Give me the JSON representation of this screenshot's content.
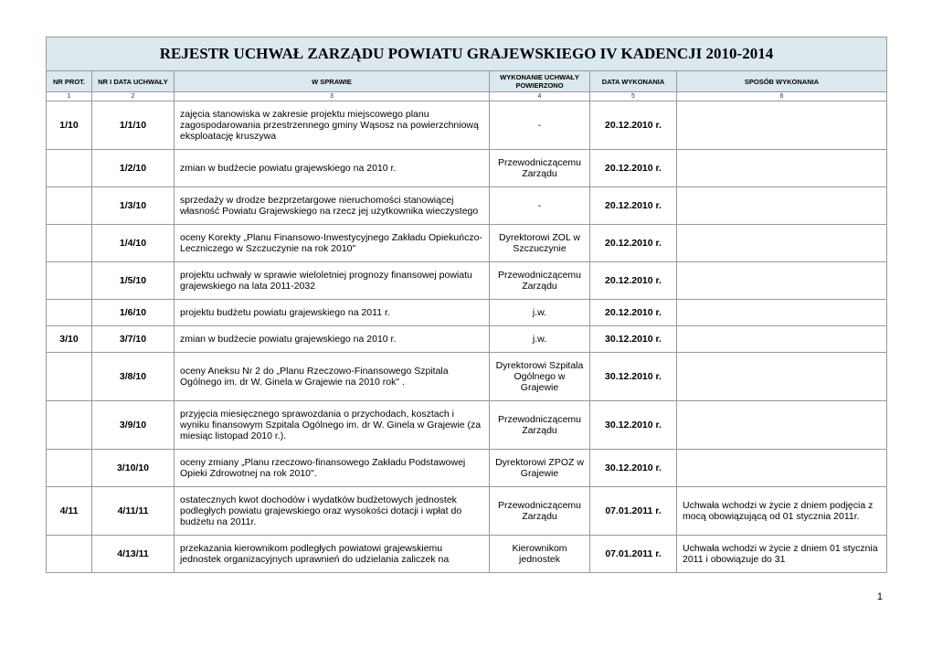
{
  "title": "REJESTR UCHWAŁ ZARZĄDU POWIATU GRAJEWSKIEGO IV KADENCJI 2010-2014",
  "headers": {
    "nr_prot": "NR PROT.",
    "nr_data": "NR I DATA UCHWAŁY",
    "w_sprawie": "W SPRAWIE",
    "wykonanie": "WYKONANIE UCHWAŁY POWIERZONO",
    "data_wyk": "DATA WYKONANIA",
    "sposob": "SPOSÓB WYKONANIA"
  },
  "colnums": [
    "1",
    "2",
    "3",
    "4",
    "5",
    "6"
  ],
  "rows": [
    {
      "nr": "1/10",
      "id": "1/1/10",
      "sprawa": "zajęcia stanowiska w zakresie projektu miejscowego planu zagospodarowania przestrzennego gminy Wąsosz na powierzchniową  eksploatację kruszywa",
      "wyk": "-",
      "data": "20.12.2010 r.",
      "sposob": ""
    },
    {
      "nr": "",
      "id": "1/2/10",
      "sprawa": "zmian w budżecie powiatu grajewskiego na 2010 r.",
      "wyk": "Przewodniczącemu Zarządu",
      "data": "20.12.2010 r.",
      "sposob": ""
    },
    {
      "nr": "",
      "id": "1/3/10",
      "sprawa": "sprzedaży w drodze bezprzetargowe nieruchomości stanowiącej własność Powiatu Grajewskiego na rzecz jej użytkownika wieczystego",
      "wyk": "-",
      "data": "20.12.2010 r.",
      "sposob": ""
    },
    {
      "nr": "",
      "id": "1/4/10",
      "sprawa": "oceny Korekty „Planu Finansowo-Inwestycyjnego Zakładu Opiekuńczo-Leczniczego w Szczuczynie na rok 2010\"",
      "wyk": "Dyrektorowi ZOL w Szczuczynie",
      "data": "20.12.2010 r.",
      "sposob": ""
    },
    {
      "nr": "",
      "id": "1/5/10",
      "sprawa": "projektu uchwały w sprawie wieloletniej prognozy finansowej powiatu grajewskiego na lata 2011-2032",
      "wyk": "Przewodniczącemu Zarządu",
      "data": "20.12.2010 r.",
      "sposob": ""
    },
    {
      "nr": "",
      "id": "1/6/10",
      "sprawa": "projektu budżetu powiatu grajewskiego na 2011 r.",
      "wyk": "j.w.",
      "data": "20.12.2010 r.",
      "sposob": ""
    },
    {
      "nr": "3/10",
      "id": "3/7/10",
      "sprawa": "zmian w budżecie powiatu grajewskiego na 2010 r.",
      "wyk": "j.w.",
      "data": "30.12.2010 r.",
      "sposob": ""
    },
    {
      "nr": "",
      "id": "3/8/10",
      "sprawa": "oceny Aneksu Nr 2 do „Planu Rzeczowo-Finansowego Szpitala Ogólnego im. dr W. Ginela w Grajewie na 2010 rok\" .",
      "wyk": "Dyrektorowi Szpitala Ogólnego w Grajewie",
      "data": "30.12.2010 r.",
      "sposob": ""
    },
    {
      "nr": "",
      "id": "3/9/10",
      "sprawa": "przyjęcia miesięcznego sprawozdania o przychodach, kosztach i wyniku finansowym Szpitala Ogólnego im. dr W. Ginela w Grajewie (za miesiąc listopad 2010 r.).",
      "wyk": "Przewodniczącemu Zarządu",
      "data": "30.12.2010 r.",
      "sposob": ""
    },
    {
      "nr": "",
      "id": "3/10/10",
      "sprawa": "oceny zmiany „Planu rzeczowo-finansowego Zakładu Podstawowej Opieki Zdrowotnej na rok 2010\".",
      "wyk": "Dyrektorowi ZPOZ w Grajewie",
      "data": "30.12.2010 r.",
      "sposob": ""
    },
    {
      "nr": "4/11",
      "id": "4/11/11",
      "sprawa": "ostatecznych kwot dochodów i wydatków budżetowych jednostek podległych powiatu grajewskiego oraz wysokości dotacji i wpłat do budżetu na 2011r.",
      "wyk": "Przewodniczącemu Zarządu",
      "data": "07.01.2011 r.",
      "sposob": "Uchwała wchodzi w życie z dniem podjęcia z mocą obowiązującą od 01 stycznia 2011r."
    },
    {
      "nr": "",
      "id": "4/13/11",
      "sprawa": "przekazania kierownikom podległych powiatowi grajewskiemu jednostek organizacyjnych uprawnień do udzielania zaliczek na",
      "wyk": "Kierownikom jednostek",
      "data": "07.01.2011 r.",
      "sposob": "Uchwała wchodzi w życie z dniem 01 stycznia 2011 i obowiązuje do 31"
    }
  ],
  "page_number": "1"
}
